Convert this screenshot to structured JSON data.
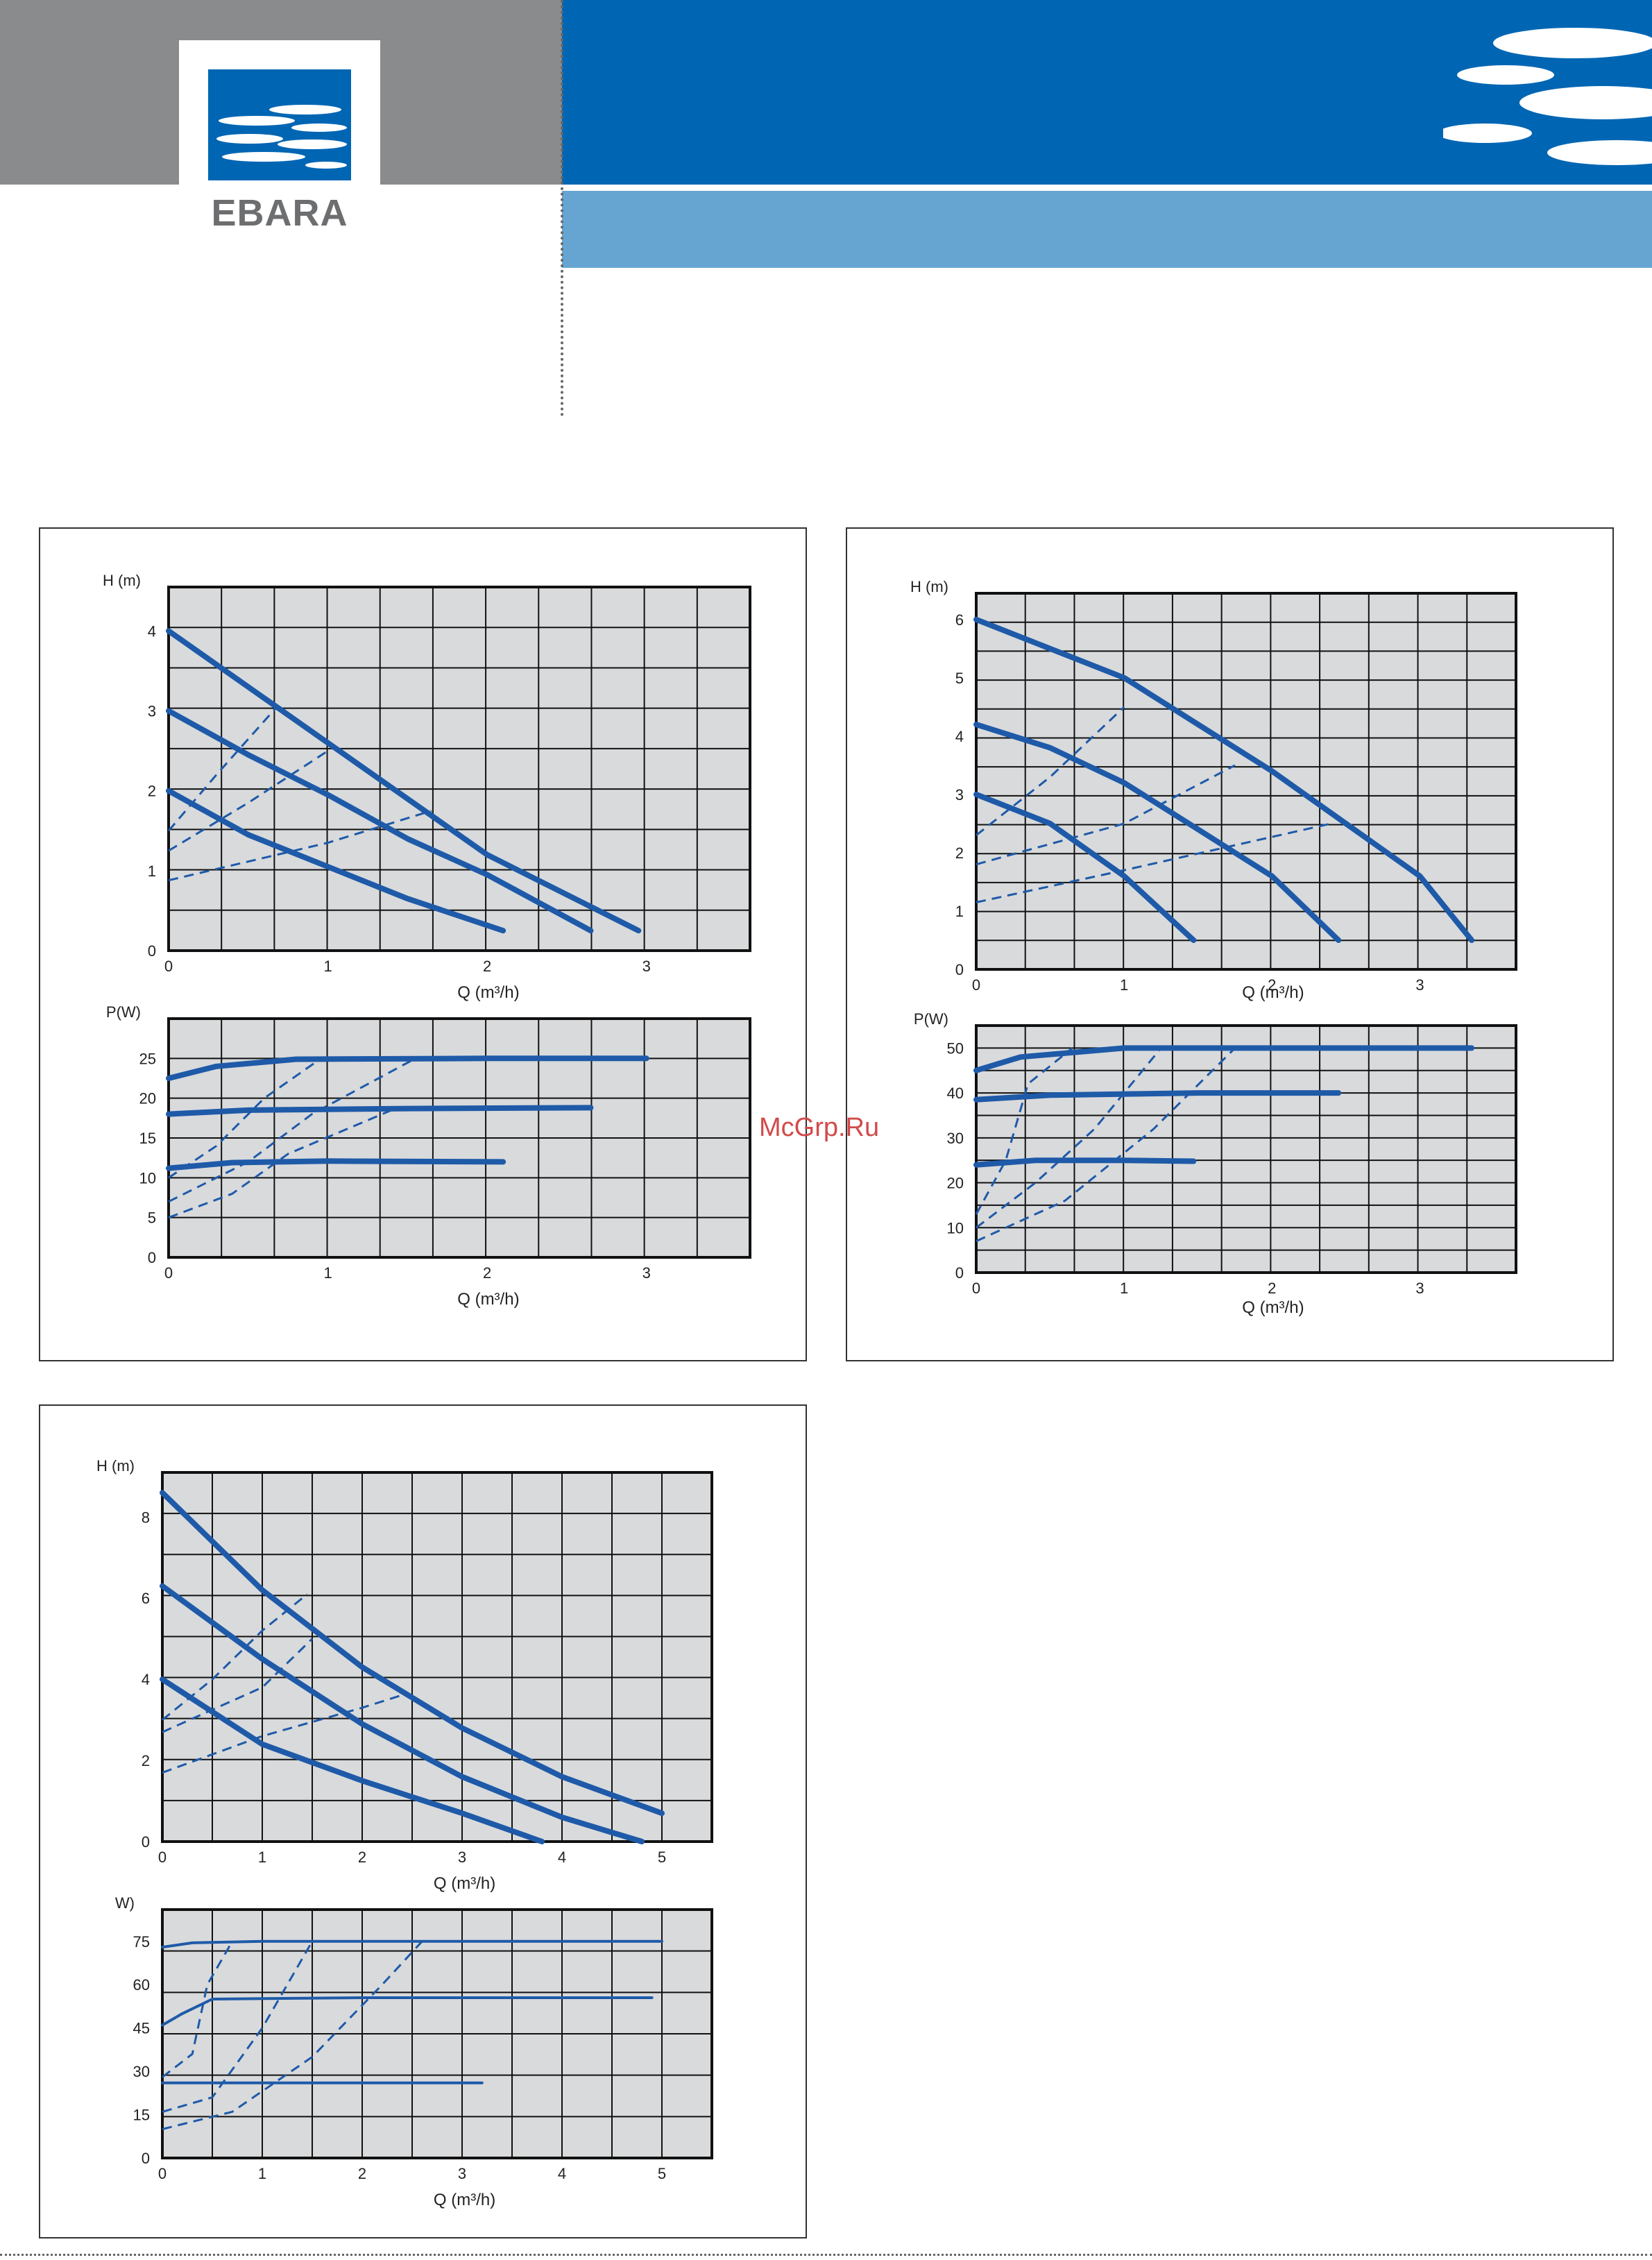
{
  "brand": {
    "name": "EBARA"
  },
  "watermark": "McGrp.Ru",
  "colors": {
    "header_gray": "#8a8b8d",
    "header_blue": "#0066b3",
    "header_light_blue": "#66a5d1",
    "curve": "#1e5aa8",
    "grid_fill": "#d9dadc"
  },
  "chart_data": [
    {
      "type": "line",
      "id": "panel1-head",
      "ylabel": "H (m)",
      "xlabel": "Q (m³/h)",
      "xlim": [
        0,
        3.65
      ],
      "ylim": [
        0,
        4.55
      ],
      "xticks": [
        0,
        1,
        2,
        3
      ],
      "yticks": [
        0,
        1,
        2,
        3,
        4
      ],
      "solid": [
        [
          [
            0,
            4.0
          ],
          [
            1,
            2.6
          ],
          [
            2,
            1.2
          ],
          [
            2.95,
            0.25
          ]
        ],
        [
          [
            0,
            3.0
          ],
          [
            0.5,
            2.45
          ],
          [
            1,
            1.95
          ],
          [
            1.5,
            1.4
          ],
          [
            2,
            0.95
          ],
          [
            2.65,
            0.25
          ]
        ],
        [
          [
            0,
            2.0
          ],
          [
            0.5,
            1.45
          ],
          [
            1,
            1.05
          ],
          [
            1.5,
            0.65
          ],
          [
            2.1,
            0.25
          ]
        ]
      ],
      "dashed": [
        [
          [
            0,
            1.5
          ],
          [
            0.3,
            2.2
          ],
          [
            0.68,
            3.05
          ]
        ],
        [
          [
            0,
            1.25
          ],
          [
            0.5,
            1.85
          ],
          [
            1,
            2.5
          ]
        ],
        [
          [
            0,
            0.88
          ],
          [
            1,
            1.35
          ],
          [
            1.65,
            1.75
          ]
        ]
      ]
    },
    {
      "type": "line",
      "id": "panel1-power",
      "ylabel": "P(W)",
      "xlabel": "Q (m³/h)",
      "xlim": [
        0,
        3.65
      ],
      "ylim": [
        0,
        30
      ],
      "xticks": [
        0,
        1,
        2,
        3
      ],
      "yticks": [
        0,
        5,
        10,
        15,
        20,
        25
      ],
      "solid": [
        [
          [
            0,
            22.5
          ],
          [
            0.3,
            24
          ],
          [
            0.8,
            24.9
          ],
          [
            2,
            25
          ],
          [
            3,
            25
          ]
        ],
        [
          [
            0,
            18
          ],
          [
            0.5,
            18.5
          ],
          [
            1.5,
            18.7
          ],
          [
            2.65,
            18.8
          ]
        ],
        [
          [
            0,
            11.2
          ],
          [
            0.4,
            11.9
          ],
          [
            1,
            12.1
          ],
          [
            2.1,
            12
          ]
        ]
      ],
      "dashed": [
        [
          [
            0,
            10
          ],
          [
            0.3,
            14
          ],
          [
            0.6,
            20
          ],
          [
            0.95,
            24.9
          ]
        ],
        [
          [
            0,
            7
          ],
          [
            0.5,
            12
          ],
          [
            0.9,
            18
          ],
          [
            1.55,
            25
          ]
        ],
        [
          [
            0,
            5
          ],
          [
            0.4,
            8
          ],
          [
            0.75,
            13
          ],
          [
            1.4,
            18.5
          ]
        ]
      ]
    },
    {
      "type": "line",
      "id": "panel2-head",
      "ylabel": "H (m)",
      "xlabel": "Q (m³/h)",
      "xlim": [
        0,
        3.65
      ],
      "ylim": [
        0,
        6.45
      ],
      "xticks": [
        0,
        1,
        2,
        3
      ],
      "yticks": [
        0,
        1,
        2,
        3,
        4,
        5,
        6
      ],
      "solid": [
        [
          [
            0,
            6.0
          ],
          [
            1,
            5.0
          ],
          [
            2,
            3.4
          ],
          [
            3,
            1.6
          ],
          [
            3.35,
            0.5
          ]
        ],
        [
          [
            0,
            4.2
          ],
          [
            0.5,
            3.8
          ],
          [
            1,
            3.2
          ],
          [
            1.5,
            2.4
          ],
          [
            2,
            1.6
          ],
          [
            2.45,
            0.5
          ]
        ],
        [
          [
            0,
            3.0
          ],
          [
            0.5,
            2.5
          ],
          [
            1,
            1.6
          ],
          [
            1.47,
            0.5
          ]
        ]
      ],
      "dashed": [
        [
          [
            0,
            2.3
          ],
          [
            0.5,
            3.3
          ],
          [
            1,
            4.5
          ]
        ],
        [
          [
            0,
            1.8
          ],
          [
            1,
            2.5
          ],
          [
            1.75,
            3.5
          ]
        ],
        [
          [
            0,
            1.15
          ],
          [
            1,
            1.7
          ],
          [
            2.4,
            2.5
          ]
        ]
      ]
    },
    {
      "type": "line",
      "id": "panel2-power",
      "ylabel": "P(W)",
      "xlabel": "Q (m³/h)",
      "xlim": [
        0,
        3.65
      ],
      "ylim": [
        0,
        55
      ],
      "xticks": [
        0,
        1,
        2,
        3
      ],
      "yticks": [
        0,
        10,
        20,
        30,
        40,
        50
      ],
      "solid": [
        [
          [
            0,
            45
          ],
          [
            0.3,
            48
          ],
          [
            1,
            50
          ],
          [
            2,
            50
          ],
          [
            3.35,
            50
          ]
        ],
        [
          [
            0,
            38.5
          ],
          [
            0.5,
            39.5
          ],
          [
            1.5,
            40
          ],
          [
            2.45,
            40
          ]
        ],
        [
          [
            0,
            24
          ],
          [
            0.4,
            25
          ],
          [
            1,
            25
          ],
          [
            1.47,
            24.8
          ]
        ]
      ],
      "dashed": [
        [
          [
            0,
            13
          ],
          [
            0.2,
            25
          ],
          [
            0.35,
            42
          ],
          [
            0.65,
            50
          ]
        ],
        [
          [
            0,
            10
          ],
          [
            0.4,
            20
          ],
          [
            0.8,
            32
          ],
          [
            1.25,
            50
          ]
        ],
        [
          [
            0,
            7
          ],
          [
            0.6,
            16
          ],
          [
            1.2,
            32
          ],
          [
            1.75,
            50
          ]
        ]
      ]
    },
    {
      "type": "line",
      "id": "panel3-head",
      "ylabel": "H (m)",
      "xlabel": "Q (m³/h)",
      "xlim": [
        0,
        5.5
      ],
      "ylim": [
        0,
        9.1
      ],
      "xticks": [
        0,
        1,
        2,
        3,
        4,
        5
      ],
      "yticks": [
        0,
        2,
        4,
        6,
        8
      ],
      "solid": [
        [
          [
            0,
            8.6
          ],
          [
            1,
            6.2
          ],
          [
            2,
            4.3
          ],
          [
            3,
            2.8
          ],
          [
            4,
            1.6
          ],
          [
            5,
            0.7
          ]
        ],
        [
          [
            0,
            6.3
          ],
          [
            1,
            4.5
          ],
          [
            2,
            2.9
          ],
          [
            3,
            1.6
          ],
          [
            4,
            0.6
          ],
          [
            4.8,
            0
          ]
        ],
        [
          [
            0,
            4.0
          ],
          [
            1,
            2.4
          ],
          [
            2,
            1.5
          ],
          [
            3,
            0.7
          ],
          [
            3.8,
            0
          ]
        ]
      ],
      "dashed": [
        [
          [
            0,
            3.0
          ],
          [
            0.5,
            4.0
          ],
          [
            1,
            5.2
          ],
          [
            1.45,
            6.1
          ]
        ],
        [
          [
            0,
            2.7
          ],
          [
            1,
            3.8
          ],
          [
            1.5,
            5.0
          ]
        ],
        [
          [
            0,
            1.7
          ],
          [
            1,
            2.6
          ],
          [
            2,
            3.3
          ],
          [
            2.45,
            3.65
          ]
        ]
      ]
    },
    {
      "type": "line",
      "id": "panel3-power",
      "ylabel": "W)",
      "xlabel": "Q (m³/h)",
      "xlim": [
        0,
        5.5
      ],
      "ylim": [
        0,
        86
      ],
      "xticks": [
        0,
        1,
        2,
        3,
        4,
        5
      ],
      "yticks": [
        0,
        15,
        30,
        45,
        60,
        75
      ],
      "solid": [
        [
          [
            0,
            73
          ],
          [
            0.3,
            74.5
          ],
          [
            1,
            75
          ],
          [
            3,
            75
          ],
          [
            5,
            75
          ]
        ],
        [
          [
            0,
            46
          ],
          [
            0.2,
            50
          ],
          [
            0.5,
            55
          ],
          [
            2,
            55.5
          ],
          [
            4.9,
            55.5
          ]
        ],
        [
          [
            0,
            26
          ],
          [
            1,
            26
          ],
          [
            3.2,
            26
          ]
        ]
      ],
      "dashed": [
        [
          [
            0,
            28
          ],
          [
            0.3,
            36
          ],
          [
            0.45,
            60
          ],
          [
            0.7,
            75
          ]
        ],
        [
          [
            0,
            16
          ],
          [
            0.5,
            21
          ],
          [
            1,
            45
          ],
          [
            1.5,
            75
          ]
        ],
        [
          [
            0,
            10
          ],
          [
            0.7,
            16
          ],
          [
            1.5,
            35
          ],
          [
            2.2,
            60
          ],
          [
            2.6,
            75
          ]
        ]
      ]
    }
  ]
}
